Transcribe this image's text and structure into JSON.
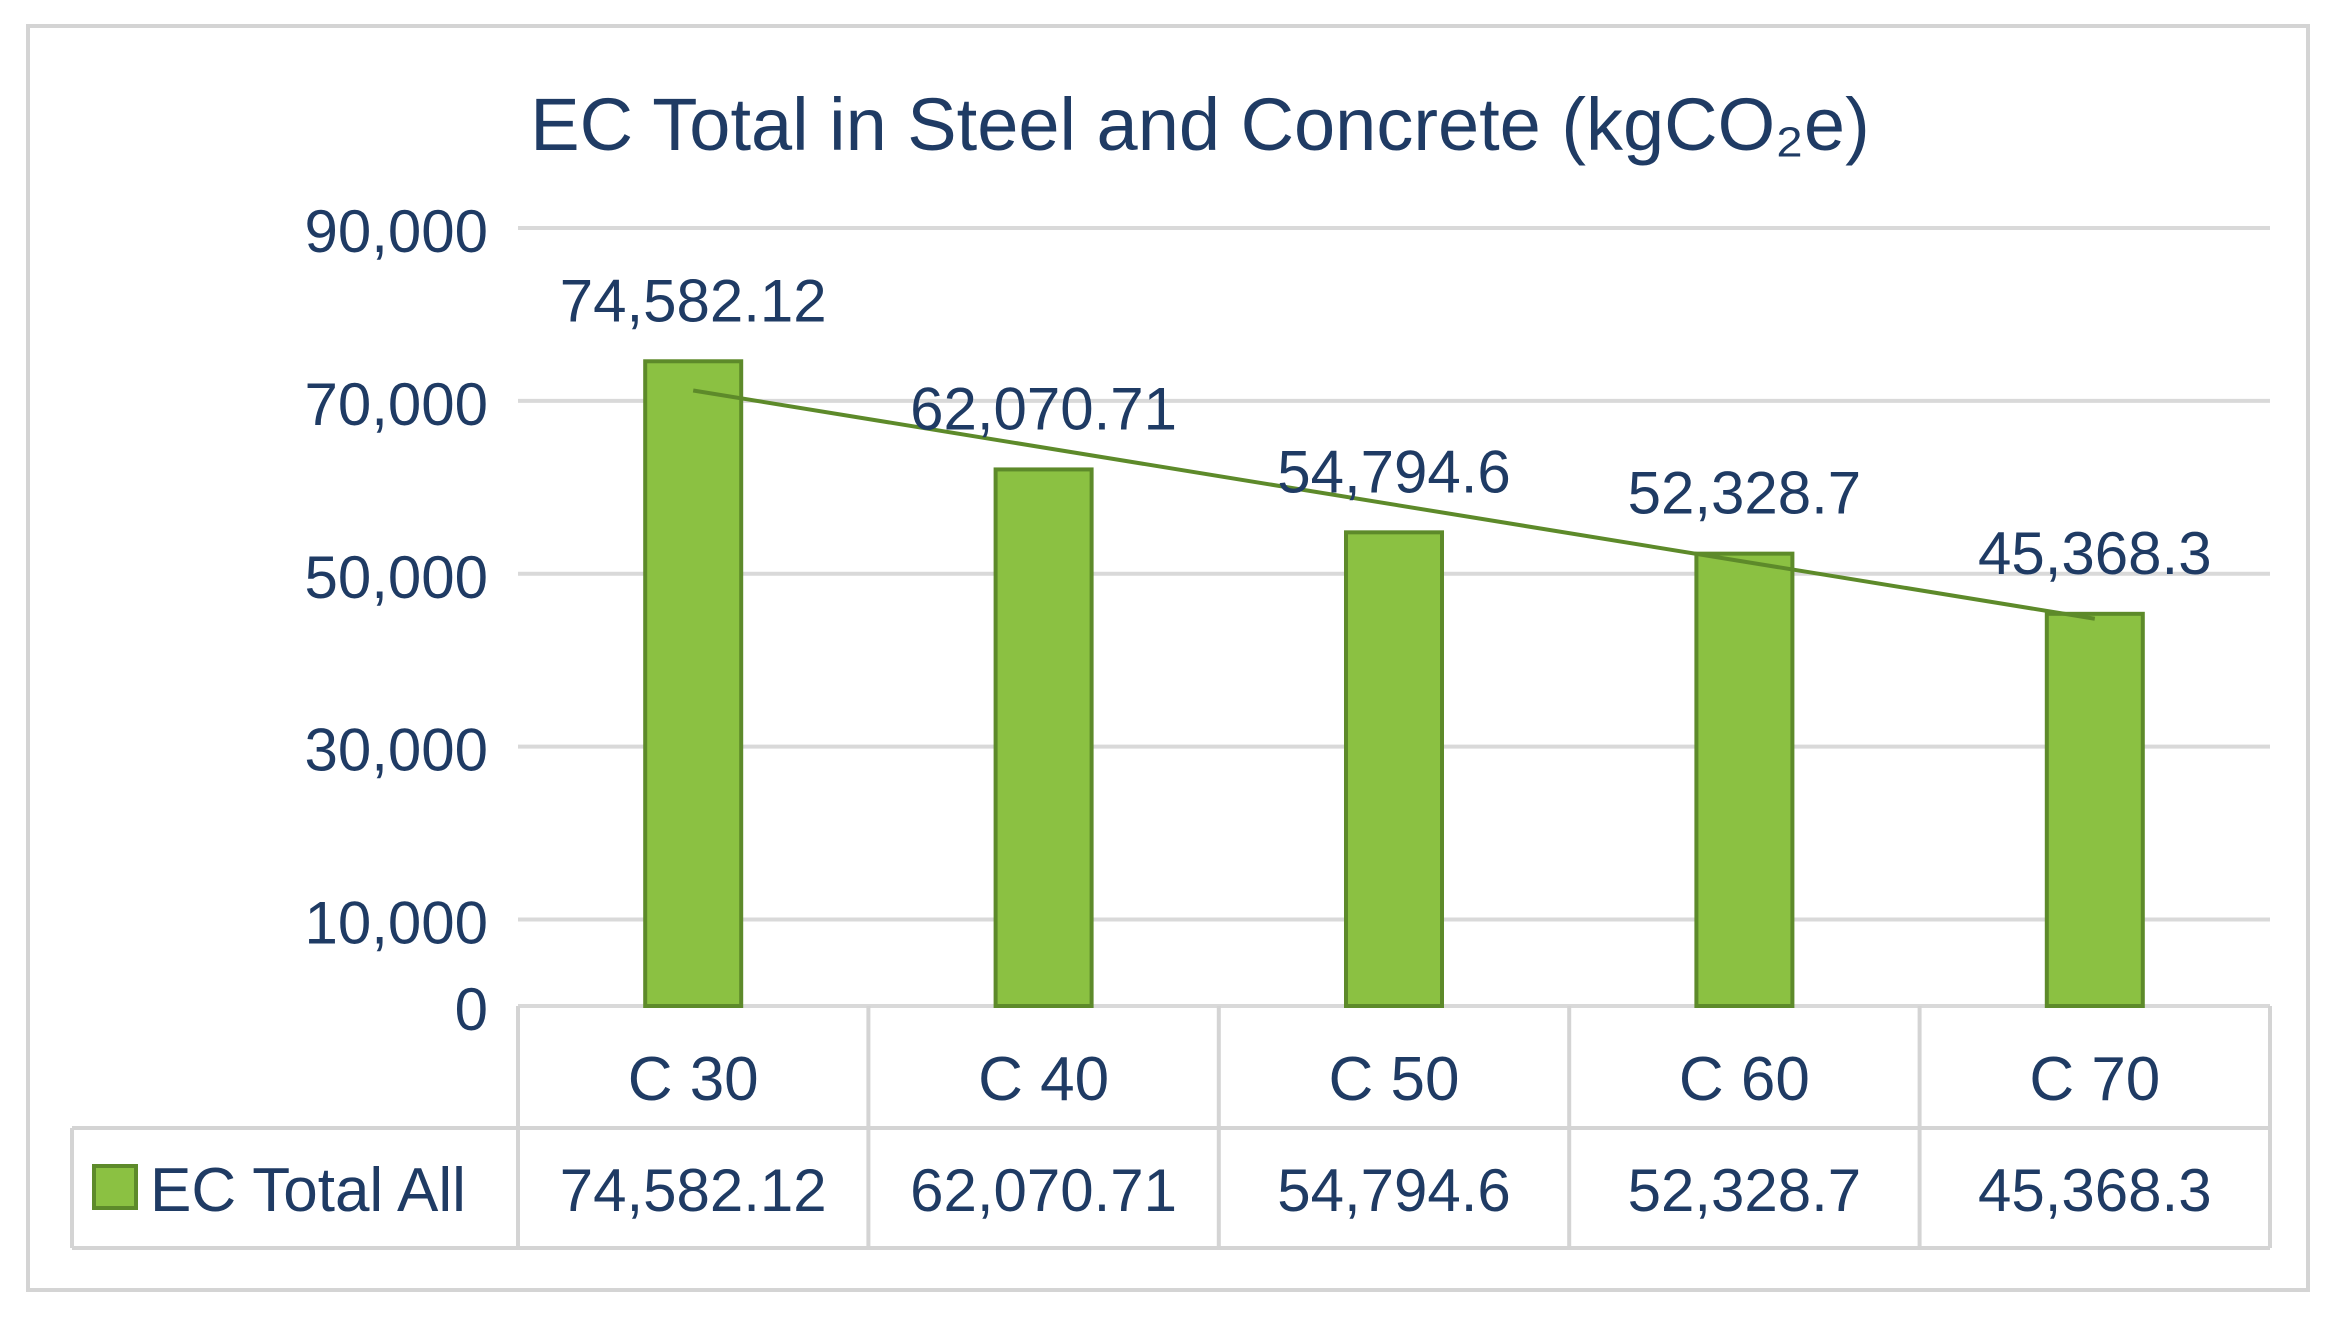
{
  "colors": {
    "bar_fill": "#8bc142",
    "bar_stroke": "#5d8a2a",
    "trend": "#5d8a2a",
    "text": "#1f3b64",
    "grid": "#d9d9d9",
    "frame": "#d4d4d4"
  },
  "chart_data": {
    "type": "bar",
    "title": "EC Total in Steel and Concrete (kgCO₂e)",
    "categories": [
      "C 30",
      "C 40",
      "C 50",
      "C 60",
      "C 70"
    ],
    "series": [
      {
        "name": "EC Total All",
        "values": [
          74582.12,
          62070.71,
          54794.6,
          52328.7,
          45368.3
        ],
        "value_labels": [
          "74,582.12",
          "62,070.71",
          "54,794.6",
          "52,328.7",
          "45,368.3"
        ]
      }
    ],
    "trendline": {
      "type": "linear",
      "start_value": 71200,
      "end_value": 44800
    },
    "ylim": [
      0,
      90000
    ],
    "yticks": [
      0,
      10000,
      30000,
      50000,
      70000,
      90000
    ],
    "ytick_labels": [
      "0",
      "10,000",
      "30,000",
      "50,000",
      "70,000",
      "90,000"
    ],
    "grid": true,
    "data_table": true,
    "xlabel": "",
    "ylabel": ""
  }
}
